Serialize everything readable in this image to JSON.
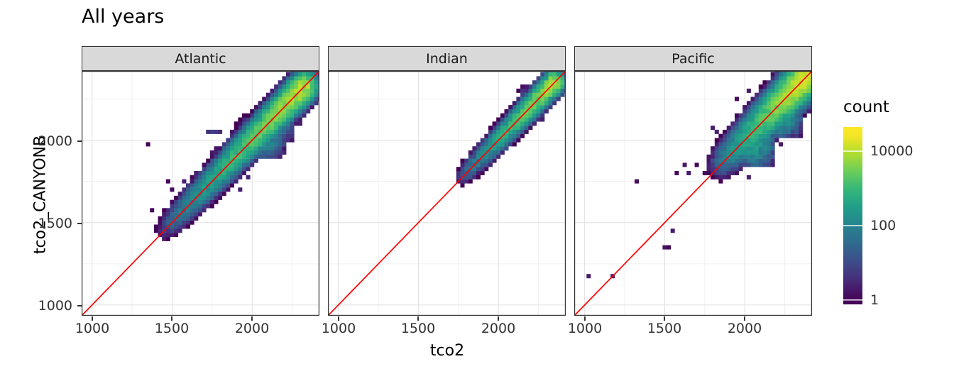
{
  "title": "All years",
  "axes": {
    "x_label": "tco2",
    "y_label": "tco2_CANYONB",
    "x_ticks": [
      1000,
      1500,
      2000
    ],
    "y_ticks": [
      1000,
      1500,
      2000
    ],
    "minor_ticks": [
      1250,
      1750,
      2250
    ]
  },
  "legend": {
    "title": "count",
    "ticks": [
      "10000",
      "100",
      "1"
    ],
    "tick_values": [
      10000,
      100,
      1
    ],
    "top_log": 4.67,
    "bottom_log": -0.1,
    "log_max": 4.5
  },
  "colors": {
    "viridis": [
      "#440154",
      "#482878",
      "#3e4a89",
      "#31688e",
      "#26828e",
      "#1f9e89",
      "#35b779",
      "#6ece58",
      "#b5de2b",
      "#fde725"
    ],
    "red_line": "#ff0000",
    "strip_bg": "#d9d9d9",
    "panel_border": "#333333",
    "grid_major": "#e0e0e0",
    "grid_minor": "#f0f0f0"
  },
  "chart_data": {
    "type": "heatmap",
    "subtype": "2d-binned scatter (geom_bin2d) with y=x red reference line, faceted by ocean basin",
    "title": "All years",
    "xlabel": "tco2",
    "ylabel": "tco2_CANYONB",
    "xlim": [
      935,
      2420
    ],
    "ylim": [
      935,
      2420
    ],
    "bin_size": 25,
    "grid": true,
    "legend_position": "right",
    "count_scale": {
      "type": "log10",
      "legend_ticks": [
        1,
        100,
        10000
      ],
      "max": 30000
    },
    "reference_line": "y = x (red)",
    "panels": [
      {
        "name": "Atlantic",
        "seed": 11,
        "band": {
          "from": 1460,
          "to": 2335,
          "log_peak": [
            0.5,
            4.05
          ],
          "peak_pow": 0.5,
          "sigma": 1.25,
          "halfwidth": 4,
          "fringe": 0.5,
          "fringe_width": 6
        },
        "blobs": [
          {
            "x": 2085,
            "y": 2015,
            "log_peak": 2.35,
            "sigma": 2.1,
            "halfwidth": 5
          },
          {
            "x": 1985,
            "y": 2062,
            "log_peak": 1.4,
            "sigma": 1.4,
            "halfwidth": 3
          },
          {
            "x": 2155,
            "y": 2090,
            "log_peak": 2.0,
            "sigma": 1.9,
            "halfwidth": 4
          }
        ],
        "rows": [
          {
            "y": 2062,
            "x0": 1720,
            "x1": 1935,
            "max": 6
          }
        ],
        "outliers": [
          [
            1343,
            1977
          ],
          [
            1458,
            1542
          ],
          [
            1490,
            1512
          ],
          [
            1470,
            1470
          ],
          [
            1520,
            1560
          ],
          [
            1560,
            1545
          ],
          [
            1585,
            1690
          ],
          [
            1610,
            1565
          ],
          [
            1640,
            1735
          ],
          [
            1655,
            1660
          ],
          [
            1665,
            1755
          ],
          [
            1690,
            1815
          ],
          [
            1715,
            1840
          ],
          [
            1730,
            1650
          ],
          [
            1755,
            1930
          ],
          [
            1785,
            1955
          ],
          [
            1810,
            1705
          ],
          [
            1860,
            1765
          ],
          [
            1905,
            1840
          ],
          [
            1930,
            1705
          ],
          [
            2010,
            1870
          ],
          [
            2060,
            1905
          ],
          [
            2110,
            1950
          ],
          [
            1480,
            1745
          ],
          [
            2210,
            2060
          ],
          [
            1995,
            2140
          ],
          [
            1940,
            2060
          ],
          [
            1870,
            1990
          ]
        ]
      },
      {
        "name": "Indian",
        "seed": 22,
        "band": {
          "from": 1780,
          "to": 2355,
          "log_peak": [
            0.9,
            4.0
          ],
          "peak_pow": 0.55,
          "sigma": 0.95,
          "halfwidth": 3,
          "fringe": 0.3,
          "fringe_width": 4
        },
        "blobs": [
          {
            "x": 2185,
            "y": 2268,
            "log_peak": 0.9,
            "sigma": 1.2,
            "halfwidth": 2
          }
        ],
        "rows": [],
        "outliers": [
          [
            1800,
            1852
          ],
          [
            1833,
            1846
          ],
          [
            1868,
            1908
          ],
          [
            1846,
            1882
          ],
          [
            2070,
            2160
          ],
          [
            2140,
            2232
          ],
          [
            2232,
            2150
          ],
          [
            2290,
            2232
          ],
          [
            1952,
            2040
          ],
          [
            1990,
            1902
          ],
          [
            2320,
            2252
          ],
          [
            2180,
            2280
          ],
          [
            1920,
            1870
          ]
        ]
      },
      {
        "name": "Pacific",
        "seed": 33,
        "band": {
          "from": 1858,
          "to": 2408,
          "log_peak": [
            1.2,
            4.3
          ],
          "peak_pow": 0.55,
          "sigma": 1.5,
          "halfwidth": 5,
          "fringe": 0.55,
          "fringe_width": 7
        },
        "blobs": [
          {
            "x": 2045,
            "y": 1968,
            "log_peak": 2.45,
            "sigma": 2.3,
            "halfwidth": 5
          },
          {
            "x": 2235,
            "y": 2162,
            "log_peak": 2.6,
            "sigma": 2.1,
            "halfwidth": 5
          },
          {
            "x": 2335,
            "y": 2282,
            "log_peak": 2.2,
            "sigma": 1.9,
            "halfwidth": 4
          }
        ],
        "rows": [
          {
            "y": 1897,
            "x0": 1835,
            "x1": 1990,
            "max": 8
          },
          {
            "y": 1858,
            "x0": 1898,
            "x1": 1962,
            "max": 4
          }
        ],
        "outliers": [
          [
            1015,
            1163
          ],
          [
            1183,
            1175
          ],
          [
            1489,
            1348
          ],
          [
            1520,
            1355
          ],
          [
            1334,
            1744
          ],
          [
            1565,
            1792
          ],
          [
            1620,
            1862
          ],
          [
            1700,
            1852
          ],
          [
            1745,
            1806
          ],
          [
            1795,
            1872
          ],
          [
            1850,
            1757
          ],
          [
            1660,
            1802
          ],
          [
            1900,
            1797
          ],
          [
            1552,
            1452
          ],
          [
            2390,
            2282
          ],
          [
            2160,
            1990
          ],
          [
            2260,
            2080
          ],
          [
            1950,
            1900
          ],
          [
            1980,
            1855
          ]
        ]
      }
    ]
  }
}
